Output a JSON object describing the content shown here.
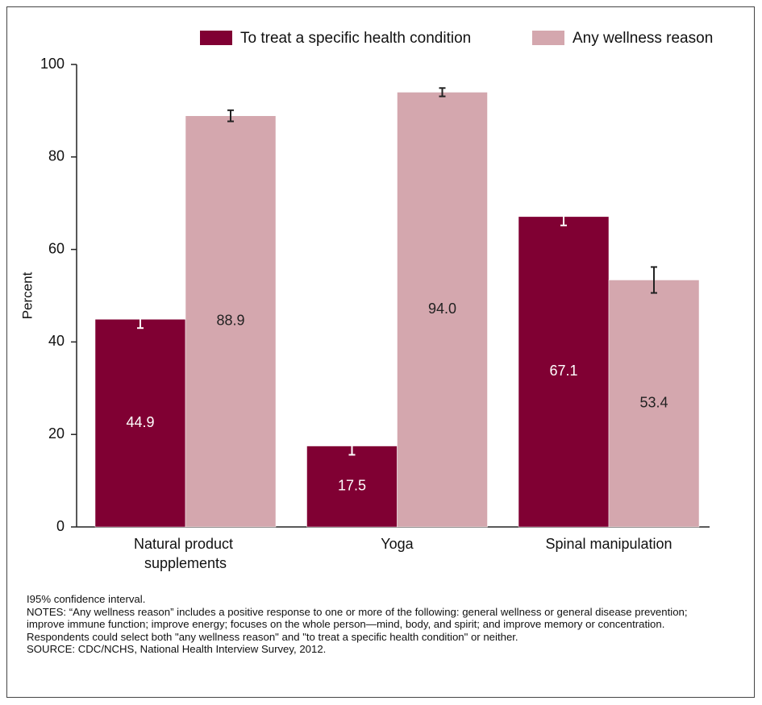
{
  "chart_data": {
    "type": "bar",
    "y_label": "Percent",
    "categories": [
      "Natural product supplements",
      "Yoga",
      "Spinal manipulation"
    ],
    "series": [
      {
        "name": "To treat a specific health condition",
        "color": "#800033",
        "label_color": "#ffffff",
        "values": [
          44.9,
          17.5,
          67.1
        ],
        "errors": [
          1.9,
          1.9,
          1.9
        ]
      },
      {
        "name": "Any wellness reason",
        "color": "#d4a7ae",
        "label_color": "#222222",
        "values": [
          88.9,
          94.0,
          53.4
        ],
        "value_labels": [
          "88.9",
          "94.0",
          "53.4"
        ],
        "errors": [
          1.2,
          0.9,
          2.8
        ]
      }
    ],
    "ylim": [
      0,
      100
    ],
    "yticks": [
      0,
      20,
      40,
      60,
      80,
      100
    ],
    "legend": "top",
    "error_bar_legend": "95% confidence interval.",
    "notes": "NOTES: “Any wellness reason” includes a positive response to one or more of the following: general wellness or general disease prevention; improve immune function; improve energy; focuses on the whole person—mind, body, and spirit; and improve memory or concentration. Respondents could select both \"any wellness reason\" and \"to treat a specific health condition\" or neither.",
    "source": "SOURCE: CDC/NCHS, National Health Interview Survey, 2012."
  }
}
